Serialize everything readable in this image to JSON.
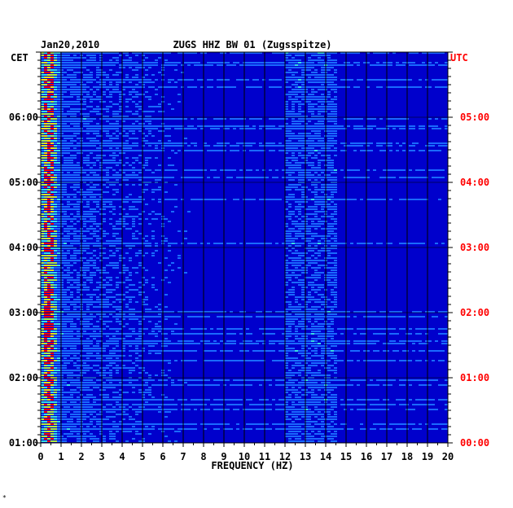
{
  "chart_data": {
    "type": "heatmap",
    "date": "Jan20,2010",
    "station_title": "ZUGS HHZ BW 01 (Zugsspitze)",
    "xlabel": "FREQUENCY (HZ)",
    "xlim": [
      0,
      20
    ],
    "x_ticks": [
      "0",
      "1",
      "2",
      "3",
      "4",
      "5",
      "6",
      "7",
      "8",
      "9",
      "10",
      "11",
      "12",
      "13",
      "14",
      "15",
      "16",
      "17",
      "18",
      "19",
      "20"
    ],
    "left_axis": {
      "label": "CET",
      "ticks": [
        "06:00",
        "05:00",
        "04:00",
        "03:00",
        "02:00",
        "01:00"
      ],
      "color": "#000000"
    },
    "right_axis": {
      "label": "UTC",
      "ticks": [
        "05:00",
        "04:00",
        "03:00",
        "02:00",
        "01:00",
        "00:00"
      ],
      "color": "#ff0000"
    },
    "background_color": "#0000cc",
    "colormap": [
      "#0000cc",
      "#1a6aff",
      "#38e0e0",
      "#b0f040",
      "#ffe000",
      "#ff0000"
    ],
    "features": [
      {
        "x_range": [
          0.2,
          0.6
        ],
        "intensity": "high"
      },
      {
        "x_range": [
          12.0,
          14.5
        ],
        "intensity": "low"
      }
    ],
    "grid": true,
    "footer_mark": "*"
  }
}
